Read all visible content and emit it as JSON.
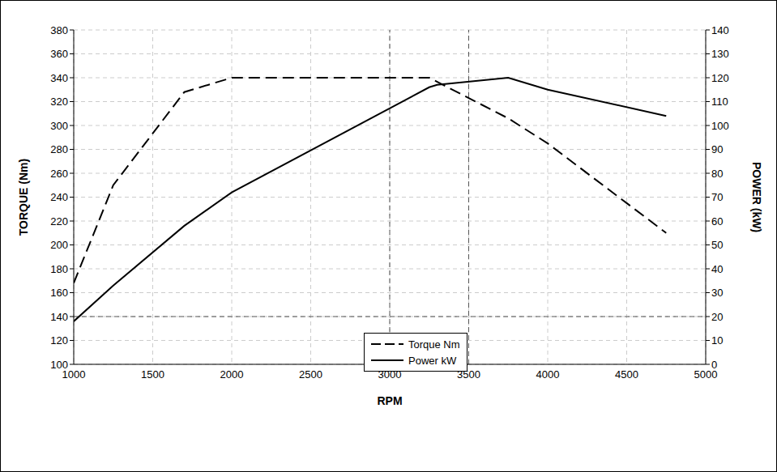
{
  "chart_data": {
    "type": "line",
    "x_label": "RPM",
    "y_label": "TORQUE (Nm)",
    "y2_label": "POWER (kW)",
    "x": [
      1000,
      1250,
      1700,
      2000,
      3250,
      3300,
      3750,
      4000,
      4500,
      4750
    ],
    "series": [
      {
        "name": "Torque Nm",
        "color": "#000000",
        "line_style": "dashed",
        "values": [
          168,
          250,
          328,
          340,
          340,
          null,
          306,
          285,
          235,
          210
        ]
      },
      {
        "name": "Power kW",
        "color": "#000000",
        "line_style": "solid",
        "axis": "y2",
        "values": [
          18,
          33,
          58,
          72,
          116,
          117,
          120,
          115,
          null,
          104
        ]
      }
    ],
    "xlim": [
      1000,
      5000
    ],
    "xticks": [
      1000,
      1500,
      2000,
      2500,
      3000,
      3500,
      4000,
      4500,
      5000
    ],
    "ylim": [
      100,
      380
    ],
    "yticks": [
      100,
      120,
      140,
      160,
      180,
      200,
      220,
      240,
      260,
      280,
      300,
      320,
      340,
      360,
      380
    ],
    "y2lim": [
      0,
      140
    ],
    "y2ticks": [
      0,
      10,
      20,
      30,
      40,
      50,
      60,
      70,
      80,
      90,
      100,
      110,
      120,
      130,
      140
    ],
    "grid": true,
    "legend": "lower center",
    "reference_lines": [
      {
        "axis": "x",
        "value": 3000
      },
      {
        "axis": "x",
        "value": 3500
      },
      {
        "axis": "y",
        "value": 140
      }
    ]
  }
}
